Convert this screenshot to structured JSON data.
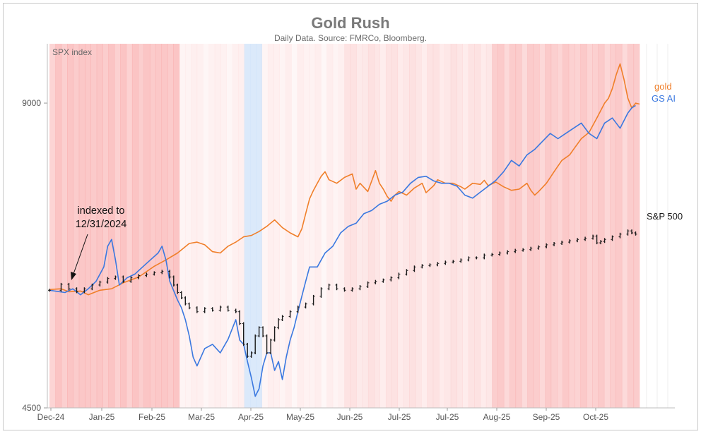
{
  "chart_data": {
    "type": "line",
    "title": "Gold Rush",
    "subtitle": "Daily Data.  Source: FMRCo, Bloomberg.",
    "panel_label": "SPX index",
    "y_scale": "log",
    "ylim": [
      4500,
      10300
    ],
    "y_ticks": [
      4500,
      9000
    ],
    "x_ticks": [
      "Dec-24",
      "Jan-25",
      "Feb-25",
      "Mar-25",
      "Apr-25",
      "May-25",
      "Jun-25",
      "Jul-25",
      "Jul-25",
      "Aug-25",
      "Sep-25",
      "Oct-25"
    ],
    "annotation": {
      "line1": "indexed to",
      "line2": "12/31/2024"
    },
    "series": [
      {
        "name": "gold",
        "color": "#f07f2a",
        "points": [
          [
            0,
            5890
          ],
          [
            3,
            5900
          ],
          [
            5,
            5860
          ],
          [
            8,
            5870
          ],
          [
            10,
            5820
          ],
          [
            13,
            5880
          ],
          [
            16,
            5900
          ],
          [
            19,
            5980
          ],
          [
            23,
            6060
          ],
          [
            27,
            6210
          ],
          [
            30,
            6300
          ],
          [
            33,
            6400
          ],
          [
            36,
            6540
          ],
          [
            38,
            6560
          ],
          [
            40,
            6520
          ],
          [
            42,
            6420
          ],
          [
            44,
            6400
          ],
          [
            46,
            6500
          ],
          [
            48,
            6560
          ],
          [
            50,
            6640
          ],
          [
            52,
            6660
          ],
          [
            54,
            6720
          ],
          [
            56,
            6800
          ],
          [
            58,
            6900
          ],
          [
            60,
            6780
          ],
          [
            62,
            6700
          ],
          [
            64,
            6640
          ],
          [
            65,
            6760
          ],
          [
            66,
            7000
          ],
          [
            67,
            7240
          ],
          [
            68,
            7380
          ],
          [
            69,
            7500
          ],
          [
            70,
            7620
          ],
          [
            71,
            7700
          ],
          [
            72,
            7560
          ],
          [
            74,
            7500
          ],
          [
            76,
            7600
          ],
          [
            78,
            7660
          ],
          [
            79,
            7400
          ],
          [
            80,
            7500
          ],
          [
            82,
            7360
          ],
          [
            84,
            7720
          ],
          [
            85,
            7500
          ],
          [
            86,
            7400
          ],
          [
            87,
            7280
          ],
          [
            88,
            7200
          ],
          [
            89,
            7300
          ],
          [
            90,
            7360
          ],
          [
            92,
            7300
          ],
          [
            94,
            7420
          ],
          [
            96,
            7500
          ],
          [
            97,
            7340
          ],
          [
            99,
            7460
          ],
          [
            100,
            7560
          ],
          [
            102,
            7500
          ],
          [
            104,
            7500
          ],
          [
            106,
            7440
          ],
          [
            107,
            7400
          ],
          [
            109,
            7500
          ],
          [
            111,
            7480
          ],
          [
            112,
            7550
          ],
          [
            113,
            7460
          ],
          [
            115,
            7520
          ],
          [
            117,
            7440
          ],
          [
            119,
            7380
          ],
          [
            121,
            7400
          ],
          [
            123,
            7500
          ],
          [
            124,
            7380
          ],
          [
            125,
            7300
          ],
          [
            126,
            7360
          ],
          [
            128,
            7500
          ],
          [
            129,
            7600
          ],
          [
            130,
            7700
          ],
          [
            132,
            7900
          ],
          [
            134,
            8000
          ],
          [
            135,
            8100
          ],
          [
            137,
            8300
          ],
          [
            139,
            8420
          ],
          [
            141,
            8700
          ],
          [
            143,
            9000
          ],
          [
            144,
            9100
          ],
          [
            145,
            9300
          ],
          [
            146,
            9600
          ],
          [
            147,
            9840
          ],
          [
            148,
            9500
          ],
          [
            149,
            9100
          ],
          [
            150,
            8900
          ],
          [
            151,
            9000
          ],
          [
            152,
            8980
          ]
        ]
      },
      {
        "name": "GS AI",
        "color": "#3a78e0",
        "points": [
          [
            0,
            5880
          ],
          [
            4,
            5850
          ],
          [
            6,
            5900
          ],
          [
            8,
            5820
          ],
          [
            10,
            5900
          ],
          [
            12,
            6000
          ],
          [
            14,
            6200
          ],
          [
            15,
            6500
          ],
          [
            16,
            6600
          ],
          [
            17,
            6300
          ],
          [
            18,
            5950
          ],
          [
            20,
            6050
          ],
          [
            22,
            6100
          ],
          [
            24,
            6200
          ],
          [
            26,
            6300
          ],
          [
            28,
            6400
          ],
          [
            29,
            6500
          ],
          [
            30,
            6300
          ],
          [
            31,
            6000
          ],
          [
            33,
            5750
          ],
          [
            34,
            5650
          ],
          [
            35,
            5500
          ],
          [
            36,
            5300
          ],
          [
            37,
            5050
          ],
          [
            38,
            4950
          ],
          [
            40,
            5150
          ],
          [
            42,
            5200
          ],
          [
            44,
            5100
          ],
          [
            46,
            5260
          ],
          [
            48,
            5500
          ],
          [
            49,
            5250
          ],
          [
            50,
            5200
          ],
          [
            51,
            5000
          ],
          [
            52,
            4820
          ],
          [
            53,
            4620
          ],
          [
            54,
            4700
          ],
          [
            55,
            4950
          ],
          [
            56,
            5100
          ],
          [
            57,
            5100
          ],
          [
            58,
            4900
          ],
          [
            59,
            5000
          ],
          [
            60,
            4800
          ],
          [
            61,
            5050
          ],
          [
            62,
            5250
          ],
          [
            63,
            5400
          ],
          [
            64,
            5600
          ],
          [
            65,
            5800
          ],
          [
            66,
            6000
          ],
          [
            67,
            6200
          ],
          [
            69,
            6200
          ],
          [
            71,
            6400
          ],
          [
            73,
            6500
          ],
          [
            75,
            6700
          ],
          [
            77,
            6800
          ],
          [
            79,
            6850
          ],
          [
            81,
            7000
          ],
          [
            83,
            7050
          ],
          [
            85,
            7150
          ],
          [
            87,
            7200
          ],
          [
            89,
            7300
          ],
          [
            91,
            7350
          ],
          [
            93,
            7500
          ],
          [
            95,
            7600
          ],
          [
            97,
            7620
          ],
          [
            99,
            7540
          ],
          [
            101,
            7500
          ],
          [
            103,
            7500
          ],
          [
            105,
            7450
          ],
          [
            107,
            7300
          ],
          [
            109,
            7250
          ],
          [
            111,
            7350
          ],
          [
            113,
            7450
          ],
          [
            115,
            7550
          ],
          [
            117,
            7700
          ],
          [
            119,
            7900
          ],
          [
            121,
            7800
          ],
          [
            123,
            8000
          ],
          [
            125,
            8100
          ],
          [
            127,
            8250
          ],
          [
            129,
            8400
          ],
          [
            131,
            8300
          ],
          [
            133,
            8400
          ],
          [
            135,
            8500
          ],
          [
            137,
            8600
          ],
          [
            139,
            8400
          ],
          [
            141,
            8300
          ],
          [
            143,
            8600
          ],
          [
            145,
            8700
          ],
          [
            147,
            8500
          ],
          [
            149,
            8800
          ],
          [
            150,
            8900
          ],
          [
            151,
            8950
          ]
        ]
      },
      {
        "name": "S&P 500",
        "color": "#1a1a1a",
        "points": [
          [
            0,
            5880
          ],
          [
            3,
            5960
          ],
          [
            5,
            5900
          ],
          [
            7,
            5860
          ],
          [
            9,
            5900
          ],
          [
            11,
            5950
          ],
          [
            13,
            5990
          ],
          [
            15,
            6040
          ],
          [
            17,
            6060
          ],
          [
            19,
            6000
          ],
          [
            21,
            6050
          ],
          [
            23,
            6080
          ],
          [
            25,
            6100
          ],
          [
            27,
            6120
          ],
          [
            29,
            6140
          ],
          [
            31,
            6060
          ],
          [
            32,
            5950
          ],
          [
            33,
            5850
          ],
          [
            34,
            5780
          ],
          [
            35,
            5700
          ],
          [
            36,
            5650
          ],
          [
            38,
            5600
          ],
          [
            40,
            5640
          ],
          [
            42,
            5620
          ],
          [
            44,
            5660
          ],
          [
            46,
            5620
          ],
          [
            48,
            5600
          ],
          [
            49,
            5450
          ],
          [
            50,
            5200
          ],
          [
            51,
            5060
          ],
          [
            52,
            5100
          ],
          [
            53,
            5300
          ],
          [
            54,
            5400
          ],
          [
            55,
            5300
          ],
          [
            56,
            5100
          ],
          [
            57,
            5250
          ],
          [
            58,
            5400
          ],
          [
            59,
            5500
          ],
          [
            60,
            5540
          ],
          [
            62,
            5600
          ],
          [
            64,
            5660
          ],
          [
            66,
            5700
          ],
          [
            68,
            5800
          ],
          [
            70,
            5900
          ],
          [
            72,
            5950
          ],
          [
            74,
            5900
          ],
          [
            76,
            5880
          ],
          [
            78,
            5900
          ],
          [
            80,
            5930
          ],
          [
            82,
            5980
          ],
          [
            84,
            6000
          ],
          [
            86,
            6020
          ],
          [
            88,
            6050
          ],
          [
            90,
            6100
          ],
          [
            92,
            6150
          ],
          [
            94,
            6200
          ],
          [
            96,
            6220
          ],
          [
            98,
            6230
          ],
          [
            100,
            6250
          ],
          [
            102,
            6270
          ],
          [
            104,
            6280
          ],
          [
            106,
            6300
          ],
          [
            108,
            6330
          ],
          [
            110,
            6330
          ],
          [
            112,
            6370
          ],
          [
            114,
            6380
          ],
          [
            116,
            6400
          ],
          [
            118,
            6420
          ],
          [
            120,
            6440
          ],
          [
            122,
            6450
          ],
          [
            124,
            6470
          ],
          [
            126,
            6490
          ],
          [
            128,
            6520
          ],
          [
            130,
            6540
          ],
          [
            132,
            6560
          ],
          [
            134,
            6580
          ],
          [
            136,
            6600
          ],
          [
            138,
            6620
          ],
          [
            140,
            6650
          ],
          [
            141,
            6550
          ],
          [
            142,
            6570
          ],
          [
            143,
            6600
          ],
          [
            145,
            6640
          ],
          [
            147,
            6680
          ],
          [
            149,
            6730
          ],
          [
            150,
            6700
          ],
          [
            151,
            6680
          ]
        ]
      }
    ],
    "legend": [
      "gold",
      "GS AI",
      "S&P 500"
    ]
  }
}
